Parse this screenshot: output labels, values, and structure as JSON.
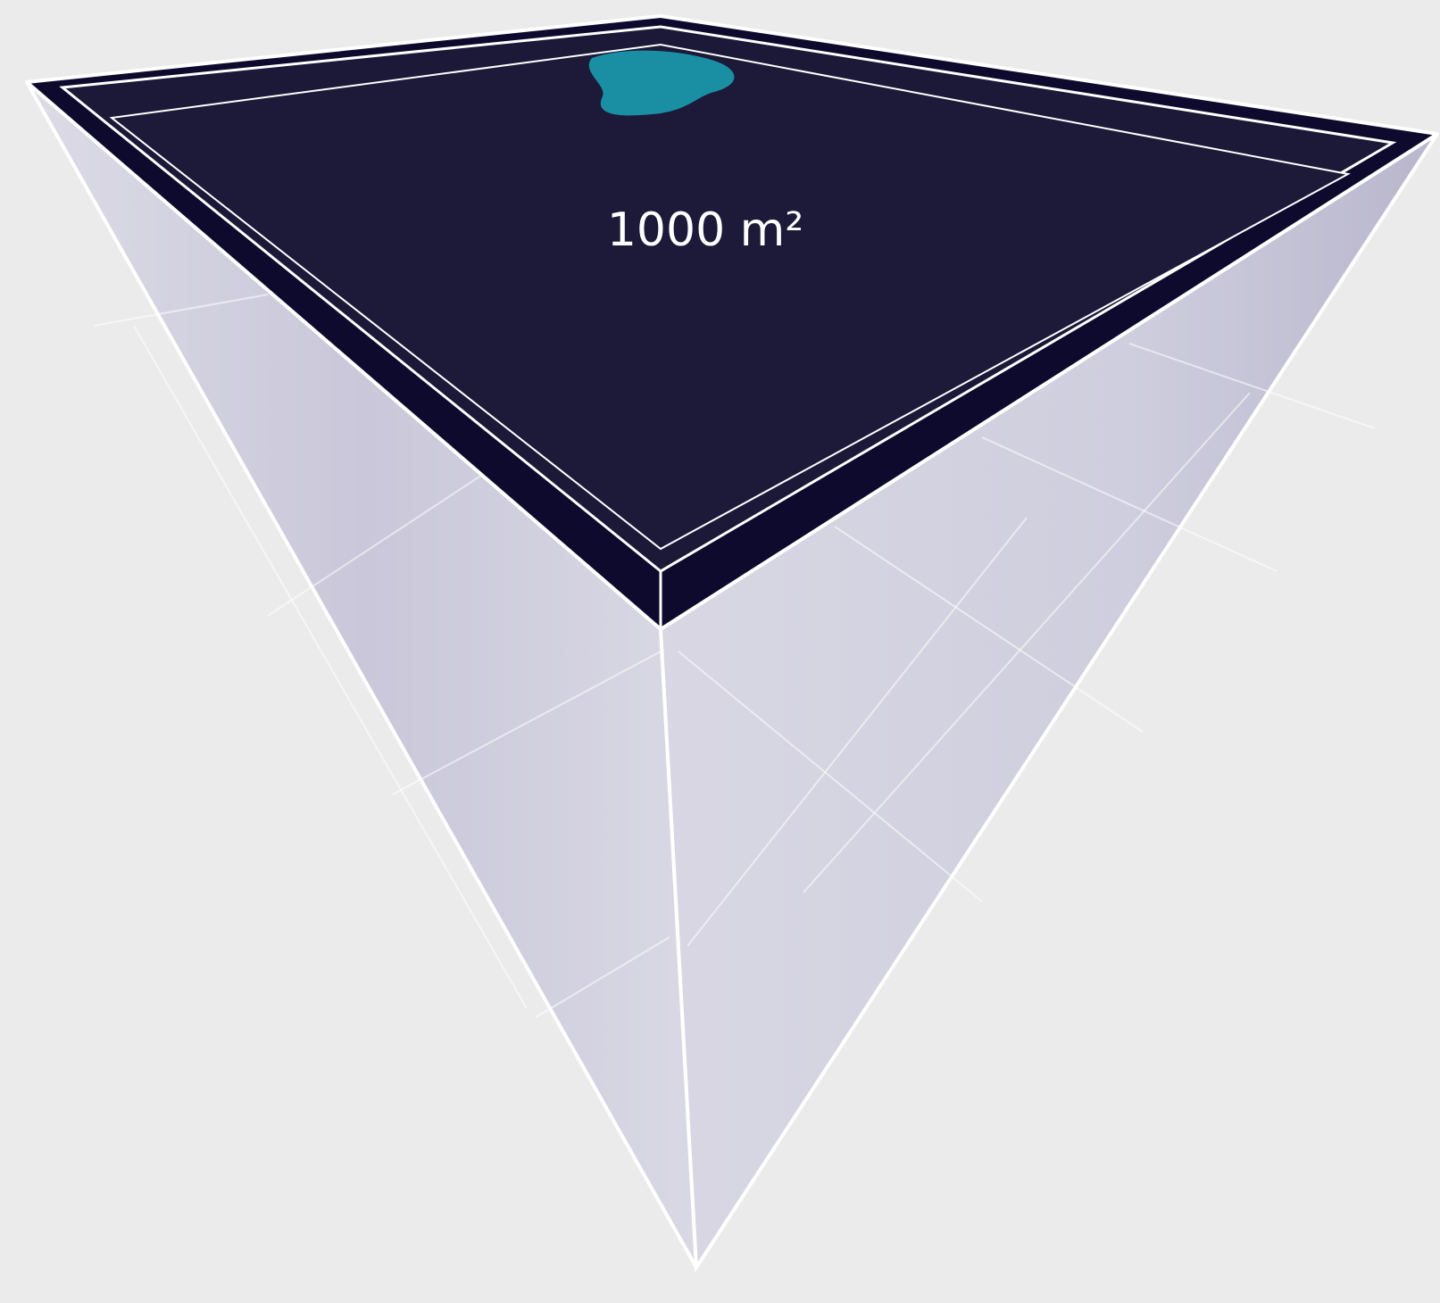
{
  "label": "1000 m²"
}
